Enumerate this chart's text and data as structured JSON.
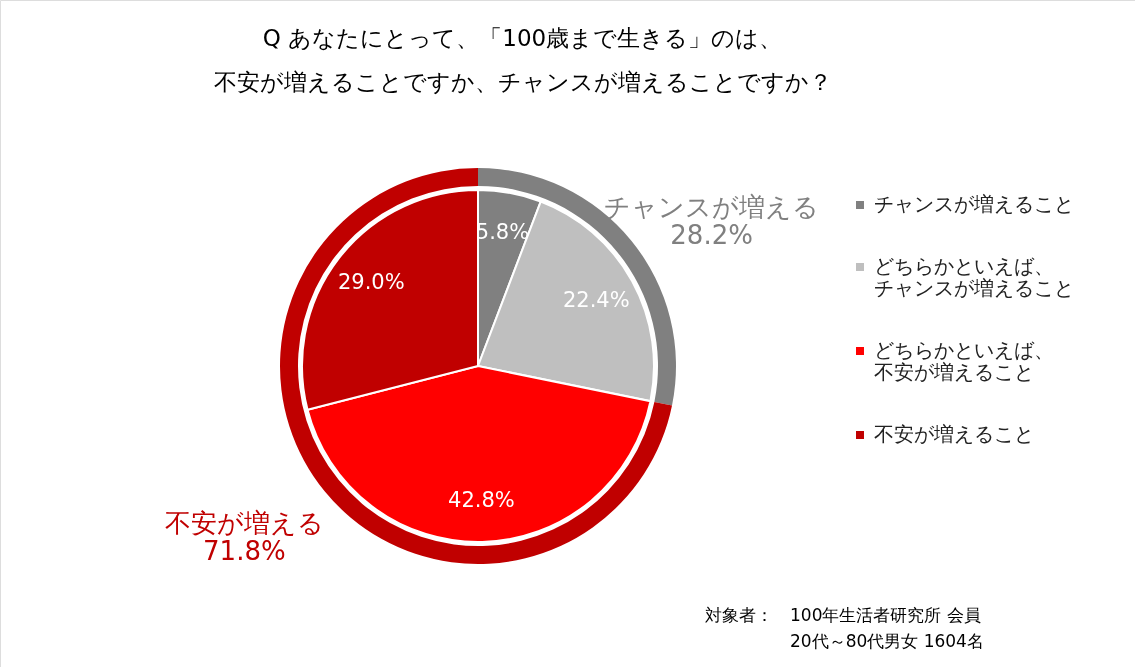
{
  "chart_data": {
    "type": "pie",
    "title": "Q あなたにとって、「100歳まで生きる」のは、不安が増えることですか、チャンスが増えることですか？",
    "categories": [
      "チャンスが増えること",
      "どちらかといえば、チャンスが増えること",
      "どちらかといえば、不安が増えること",
      "不安が増えること"
    ],
    "series": [
      {
        "values": [
          5.8,
          22.4,
          42.8,
          29.0
        ],
        "value_labels": [
          "5.8%",
          "22.4%",
          "42.8%",
          "29.0%"
        ],
        "colors": [
          "#808080",
          "#bfbfbf",
          "#ff0000",
          "#c00000"
        ]
      },
      {
        "type": "donut",
        "values": [
          28.2,
          null,
          71.8,
          null
        ],
        "value_labels": [
          "チャンスが増える28.2%",
          null,
          "不安が増える71.8%",
          null
        ],
        "colors": [
          "#808080",
          null,
          "#c00000",
          null
        ]
      }
    ],
    "legend": "right",
    "annotations": [
      "対象者：",
      "100年生活者研究所 会員",
      "20代～80代男女 1604名"
    ]
  }
}
